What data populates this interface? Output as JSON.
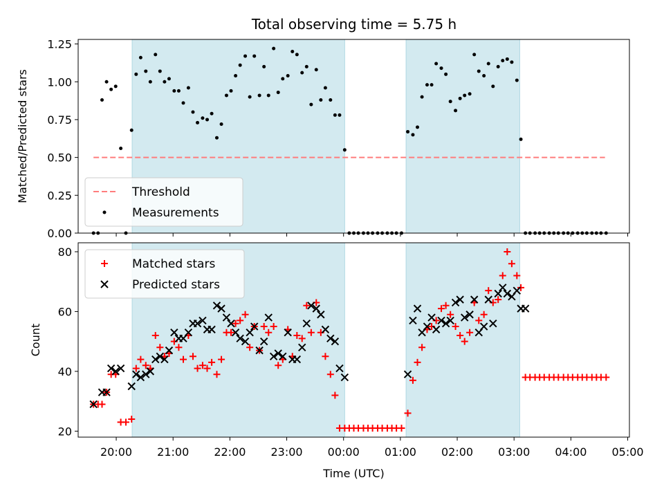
{
  "title": "Total observing time = 5.75 h",
  "colors": {
    "shade": "#d3eaf0",
    "shade_edge": "#b0d8e3",
    "threshold": "#ff7c7c",
    "measurement": "#000000",
    "matched": "#ff0000",
    "predicted": "#000000"
  },
  "chart_data": [
    {
      "type": "scatter",
      "panel": "top",
      "ylabel": "Matched/Predicted stars",
      "xlabel": "",
      "ylim": [
        0,
        1.28
      ],
      "yticks": [
        0.0,
        0.25,
        0.5,
        0.75,
        1.0,
        1.25
      ],
      "ytick_labels": [
        "0.00",
        "0.25",
        "0.50",
        "0.75",
        "1.00",
        "1.25"
      ],
      "xlim_hours": [
        19.33,
        29.03
      ],
      "xticks_hours": [
        20,
        21,
        22,
        23,
        24,
        25,
        26,
        27,
        28,
        29
      ],
      "xtick_labels": [],
      "shaded_intervals_hours": [
        [
          20.28,
          24.02
        ],
        [
          25.1,
          27.1
        ]
      ],
      "threshold": {
        "name": "Threshold",
        "value": 0.5,
        "x_hours": [
          19.6,
          28.6
        ]
      },
      "legend_position": "lower-left",
      "series": [
        {
          "name": "Measurements",
          "style": "dot",
          "x_hours": [
            19.6,
            19.68,
            19.75,
            19.83,
            19.91,
            19.99,
            20.08,
            20.17,
            20.27,
            20.35,
            20.43,
            20.52,
            20.6,
            20.69,
            20.77,
            20.85,
            20.93,
            21.02,
            21.1,
            21.18,
            21.27,
            21.35,
            21.43,
            21.52,
            21.6,
            21.68,
            21.77,
            21.85,
            21.94,
            22.02,
            22.1,
            22.18,
            22.27,
            22.35,
            22.43,
            22.52,
            22.6,
            22.68,
            22.77,
            22.85,
            22.93,
            23.02,
            23.1,
            23.18,
            23.27,
            23.35,
            23.43,
            23.52,
            23.6,
            23.68,
            23.77,
            23.85,
            23.93,
            24.02,
            24.1,
            24.18,
            24.26,
            24.35,
            24.43,
            24.51,
            24.6,
            24.68,
            24.77,
            24.85,
            24.93,
            25.02,
            25.13,
            25.22,
            25.3,
            25.38,
            25.47,
            25.55,
            25.63,
            25.72,
            25.8,
            25.88,
            25.97,
            26.05,
            26.13,
            26.22,
            26.3,
            26.38,
            26.47,
            26.55,
            26.63,
            26.72,
            26.8,
            26.88,
            26.96,
            27.05,
            27.12,
            27.2,
            27.28,
            27.37,
            27.45,
            27.53,
            27.62,
            27.7,
            27.78,
            27.87,
            27.95,
            28.03,
            28.12,
            28.2,
            28.28,
            28.37,
            28.45,
            28.53,
            28.62
          ],
          "y": [
            0,
            0,
            0.88,
            1.0,
            0.95,
            0.97,
            0.56,
            0,
            0.68,
            1.05,
            1.16,
            1.07,
            1.0,
            1.18,
            1.07,
            1.0,
            1.02,
            0.94,
            0.94,
            0.86,
            0.96,
            0.8,
            0.73,
            0.76,
            0.75,
            0.79,
            0.63,
            0.72,
            0.91,
            0.94,
            1.04,
            1.11,
            1.17,
            0.9,
            1.17,
            0.91,
            1.1,
            0.91,
            1.22,
            0.93,
            1.02,
            1.04,
            1.2,
            1.18,
            1.06,
            1.1,
            0.85,
            1.08,
            0.88,
            0.96,
            0.88,
            0.78,
            0.78,
            0.55,
            0,
            0,
            0,
            0,
            0,
            0,
            0,
            0,
            0,
            0,
            0,
            0,
            0.67,
            0.65,
            0.7,
            0.9,
            0.98,
            0.98,
            1.12,
            1.09,
            1.05,
            0.87,
            0.81,
            0.89,
            0.91,
            0.92,
            1.18,
            1.07,
            1.04,
            1.12,
            0.97,
            1.1,
            1.14,
            1.15,
            1.13,
            1.01,
            0.62,
            0,
            0,
            0,
            0,
            0,
            0,
            0,
            0,
            0,
            0,
            0,
            0,
            0,
            0,
            0,
            0,
            0,
            0
          ]
        }
      ]
    },
    {
      "type": "scatter",
      "panel": "bottom",
      "ylabel": "Count",
      "xlabel": "Time (UTC)",
      "ylim": [
        18,
        83
      ],
      "yticks": [
        20,
        40,
        60,
        80
      ],
      "ytick_labels": [
        "20",
        "40",
        "60",
        "80"
      ],
      "xlim_hours": [
        19.33,
        29.03
      ],
      "xticks_hours": [
        20,
        21,
        22,
        23,
        24,
        25,
        26,
        27,
        28,
        29
      ],
      "xtick_labels": [
        "20:00",
        "21:00",
        "22:00",
        "23:00",
        "00:00",
        "01:00",
        "02:00",
        "03:00",
        "04:00",
        "05:00"
      ],
      "shaded_intervals_hours": [
        [
          20.28,
          24.02
        ],
        [
          25.1,
          27.1
        ]
      ],
      "legend_position": "top-left",
      "series": [
        {
          "name": "Matched stars",
          "style": "plus",
          "x_hours": [
            19.6,
            19.68,
            19.75,
            19.83,
            19.91,
            19.99,
            20.08,
            20.17,
            20.27,
            20.35,
            20.43,
            20.52,
            20.6,
            20.69,
            20.77,
            20.85,
            20.93,
            21.02,
            21.1,
            21.18,
            21.27,
            21.35,
            21.43,
            21.52,
            21.6,
            21.68,
            21.77,
            21.85,
            21.94,
            22.02,
            22.1,
            22.18,
            22.27,
            22.35,
            22.43,
            22.52,
            22.6,
            22.68,
            22.77,
            22.85,
            22.93,
            23.02,
            23.1,
            23.18,
            23.27,
            23.35,
            23.43,
            23.52,
            23.6,
            23.68,
            23.77,
            23.85,
            23.93,
            24.02,
            24.1,
            24.18,
            24.26,
            24.35,
            24.43,
            24.51,
            24.6,
            24.68,
            24.77,
            24.85,
            24.93,
            25.02,
            25.13,
            25.22,
            25.3,
            25.38,
            25.47,
            25.55,
            25.63,
            25.72,
            25.8,
            25.88,
            25.97,
            26.05,
            26.13,
            26.22,
            26.3,
            26.38,
            26.47,
            26.55,
            26.63,
            26.72,
            26.8,
            26.88,
            26.96,
            27.05,
            27.12,
            27.2,
            27.28,
            27.37,
            27.45,
            27.53,
            27.62,
            27.7,
            27.78,
            27.87,
            27.95,
            28.03,
            28.12,
            28.2,
            28.28,
            28.37,
            28.45,
            28.53,
            28.62
          ],
          "y": [
            29,
            29,
            29,
            33,
            39,
            39,
            23,
            23,
            24,
            41,
            44,
            42,
            41,
            52,
            48,
            45,
            46,
            50,
            48,
            44,
            52,
            45,
            41,
            42,
            41,
            43,
            39,
            44,
            53,
            53,
            56,
            57,
            59,
            48,
            55,
            47,
            55,
            53,
            55,
            42,
            44,
            54,
            45,
            52,
            51,
            62,
            53,
            63,
            53,
            45,
            39,
            32,
            21,
            21,
            21,
            21,
            21,
            21,
            21,
            21,
            21,
            21,
            21,
            21,
            21,
            21,
            26,
            37,
            43,
            48,
            54,
            55,
            57,
            61,
            62,
            59,
            55,
            52,
            50,
            53,
            63,
            57,
            59,
            67,
            63,
            64,
            72,
            80,
            76,
            72,
            68,
            38,
            38,
            38,
            38,
            38,
            38,
            38,
            38,
            38,
            38,
            38,
            38,
            38,
            38,
            38,
            38,
            38,
            38
          ]
        },
        {
          "name": "Predicted stars",
          "style": "x",
          "x_hours": [
            19.6,
            19.75,
            19.83,
            19.91,
            19.99,
            20.08,
            20.27,
            20.35,
            20.43,
            20.52,
            20.6,
            20.69,
            20.77,
            20.85,
            20.93,
            21.02,
            21.1,
            21.18,
            21.27,
            21.35,
            21.43,
            21.52,
            21.6,
            21.68,
            21.77,
            21.85,
            21.94,
            22.02,
            22.1,
            22.18,
            22.27,
            22.35,
            22.43,
            22.52,
            22.6,
            22.68,
            22.77,
            22.85,
            22.93,
            23.02,
            23.1,
            23.18,
            23.27,
            23.35,
            23.43,
            23.52,
            23.6,
            23.68,
            23.77,
            23.85,
            23.93,
            24.02,
            25.13,
            25.22,
            25.3,
            25.38,
            25.47,
            25.55,
            25.63,
            25.72,
            25.8,
            25.88,
            25.97,
            26.05,
            26.13,
            26.22,
            26.3,
            26.38,
            26.47,
            26.55,
            26.63,
            26.72,
            26.8,
            26.88,
            26.96,
            27.05,
            27.12,
            27.2
          ],
          "y": [
            29,
            33,
            33,
            41,
            40,
            41,
            35,
            39,
            38,
            39,
            40,
            44,
            45,
            44,
            47,
            53,
            51,
            51,
            53,
            56,
            56,
            57,
            54,
            54,
            62,
            61,
            58,
            56,
            53,
            51,
            50,
            53,
            55,
            47,
            50,
            58,
            45,
            46,
            45,
            53,
            44,
            44,
            48,
            56,
            62,
            61,
            59,
            54,
            51,
            50,
            41,
            38,
            39,
            57,
            61,
            53,
            55,
            58,
            54,
            57,
            56,
            57,
            63,
            64,
            58,
            59,
            64,
            53,
            55,
            64,
            56,
            66,
            68,
            66,
            65,
            67,
            61,
            61
          ]
        }
      ]
    }
  ]
}
